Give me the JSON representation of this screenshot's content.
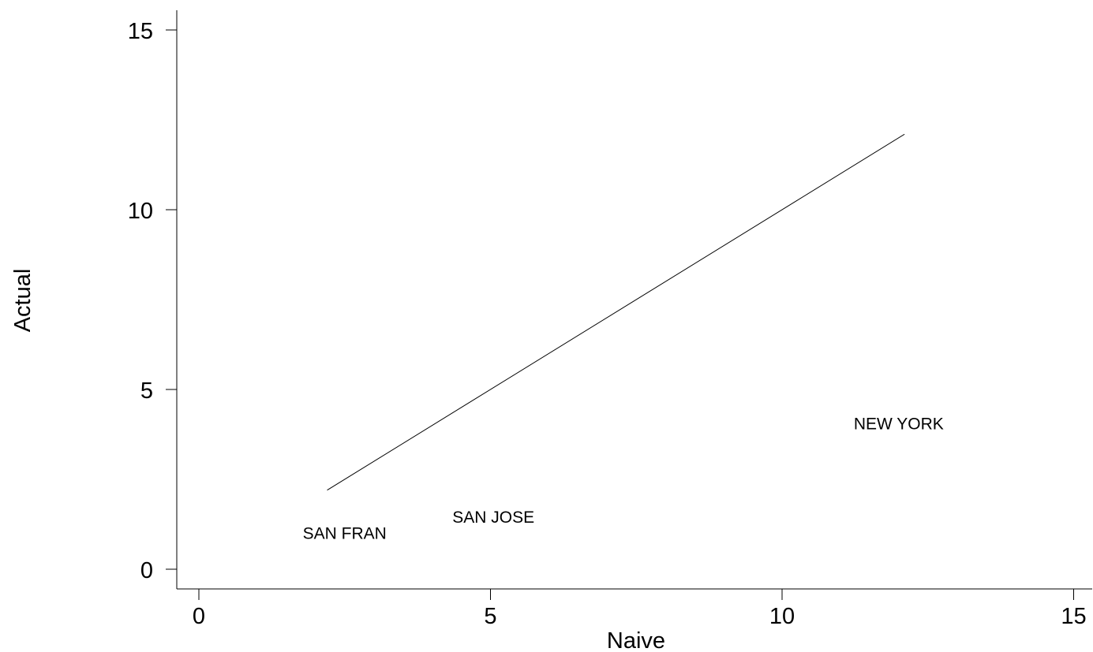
{
  "chart_data": {
    "type": "scatter",
    "xlabel": "Naive",
    "ylabel": "Actual",
    "xlim": [
      -0.8,
      15.5
    ],
    "ylim": [
      -0.55,
      15.6
    ],
    "xticks": [
      0,
      5,
      10,
      15
    ],
    "yticks": [
      0,
      5,
      10,
      15
    ],
    "grid": false,
    "legend": "none",
    "points": [
      {
        "label": "SAN FRAN",
        "x": 2.5,
        "y": 1.0
      },
      {
        "label": "SAN JOSE",
        "x": 5.05,
        "y": 1.45
      },
      {
        "label": "NEW YORK",
        "x": 12.0,
        "y": 4.05
      }
    ],
    "reference_line": {
      "x": [
        2.2,
        12.1
      ],
      "y": [
        2.2,
        12.1
      ]
    }
  }
}
